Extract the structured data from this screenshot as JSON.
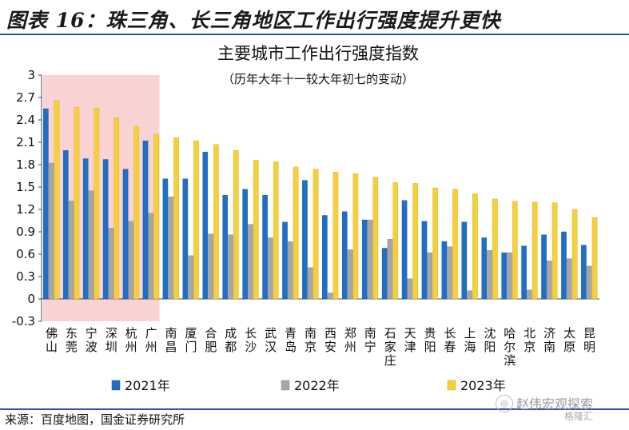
{
  "figure": {
    "title": "图表 16：珠三角、长三角地区工作出行强度提升更快",
    "source": "来源：百度地图，国金证券研究所"
  },
  "watermark": {
    "name": "赵伟宏观探索",
    "tag": "格隆汇"
  },
  "colors": {
    "series_2021": "#1f6fc5",
    "series_2022": "#a6a6a6",
    "series_2023": "#f5cf3c",
    "highlight": "#f9d3d3",
    "rule": "#2a56a8"
  },
  "chart_data": {
    "type": "bar",
    "title": "主要城市工作出行强度指数",
    "subtitle": "（历年大年十一较大年初七的变动）",
    "categories": [
      "佛山",
      "东莞",
      "宁波",
      "深圳",
      "杭州",
      "广州",
      "南昌",
      "厦门",
      "合肥",
      "成都",
      "长沙",
      "武汉",
      "青岛",
      "南京",
      "西安",
      "郑州",
      "南宁",
      "石家庄",
      "天津",
      "贵阳",
      "长春",
      "上海",
      "沈阳",
      "哈尔滨",
      "北京",
      "济南",
      "太原",
      "昆明"
    ],
    "series": [
      {
        "name": "2021年",
        "values": [
          2.55,
          1.99,
          1.88,
          1.87,
          1.74,
          2.12,
          1.61,
          1.61,
          1.97,
          1.39,
          1.47,
          1.39,
          1.03,
          1.59,
          1.12,
          1.17,
          1.06,
          0.68,
          1.32,
          1.04,
          0.77,
          1.03,
          0.82,
          0.62,
          0.71,
          0.86,
          0.9,
          0.72
        ]
      },
      {
        "name": "2022年",
        "values": [
          1.82,
          1.31,
          1.45,
          0.95,
          1.04,
          1.15,
          1.37,
          0.58,
          0.87,
          0.86,
          1.0,
          0.82,
          0.77,
          0.42,
          0.08,
          0.66,
          1.06,
          0.8,
          0.27,
          0.62,
          0.7,
          0.11,
          0.65,
          0.62,
          0.12,
          0.51,
          0.54,
          0.44
        ]
      },
      {
        "name": "2023年",
        "values": [
          2.66,
          2.57,
          2.56,
          2.43,
          2.31,
          2.21,
          2.16,
          2.12,
          2.07,
          1.99,
          1.86,
          1.84,
          1.77,
          1.74,
          1.7,
          1.68,
          1.63,
          1.56,
          1.55,
          1.49,
          1.47,
          1.41,
          1.34,
          1.31,
          1.3,
          1.29,
          1.2,
          1.09
        ]
      }
    ],
    "ylim": [
      -0.3,
      3
    ],
    "yticks": [
      "-0.3",
      "0",
      "0.3",
      "0.6",
      "0.9",
      "1.2",
      "1.5",
      "1.8",
      "2.1",
      "2.4",
      "2.7",
      "3"
    ],
    "highlight_categories": [
      "佛山",
      "东莞",
      "宁波",
      "深圳",
      "杭州",
      "广州"
    ],
    "legend_position": "bottom",
    "grid": false
  }
}
